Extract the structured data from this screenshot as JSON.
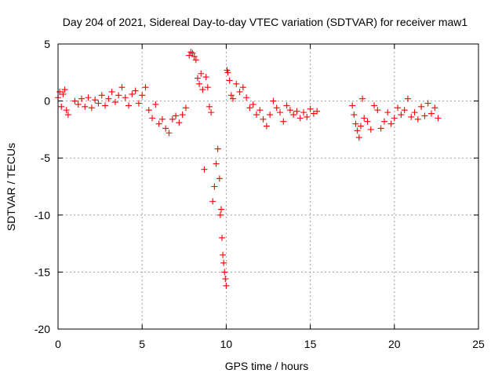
{
  "chart_data": {
    "type": "scatter",
    "title": "Day 204 of 2021, Sidereal Day-to-day VTEC variation (SDTVAR) for receiver maw1",
    "xlabel": "GPS time / hours",
    "ylabel": "SDTVAR / TECUs",
    "xlim": [
      0,
      25
    ],
    "ylim": [
      -20,
      5
    ],
    "xticks": [
      0,
      5,
      10,
      15,
      20,
      25
    ],
    "yticks": [
      5,
      0,
      -5,
      -10,
      -15,
      -20
    ],
    "xtick_labels": [
      "0",
      "5",
      "10",
      "15",
      "20",
      "25"
    ],
    "ytick_labels": [
      "5",
      "0",
      "-5",
      "-10",
      "-15",
      "-20"
    ],
    "grid": true,
    "legend": "none",
    "marker": "+",
    "color": "#ff0000",
    "series": [
      {
        "name": "maw1",
        "x": [
          0.0,
          0.1,
          0.2,
          0.3,
          0.4,
          0.5,
          0.6,
          1.0,
          1.2,
          1.4,
          1.6,
          1.8,
          2.0,
          2.2,
          2.4,
          2.6,
          2.8,
          3.0,
          3.2,
          3.4,
          3.6,
          3.8,
          4.0,
          4.2,
          4.4,
          4.6,
          4.8,
          5.0,
          5.2,
          5.4,
          5.6,
          5.8,
          6.0,
          6.2,
          6.4,
          6.6,
          6.8,
          7.0,
          7.2,
          7.4,
          7.6,
          7.8,
          7.9,
          8.0,
          8.1,
          8.2,
          8.3,
          8.4,
          8.5,
          8.6,
          8.7,
          8.8,
          8.9,
          9.0,
          9.1,
          9.2,
          9.3,
          9.4,
          9.5,
          9.6,
          9.65,
          9.7,
          9.75,
          9.8,
          9.85,
          9.9,
          9.95,
          10.0,
          10.05,
          10.1,
          10.2,
          10.3,
          10.4,
          10.6,
          10.8,
          11.0,
          11.2,
          11.4,
          11.6,
          11.8,
          12.0,
          12.2,
          12.4,
          12.6,
          12.8,
          13.0,
          13.2,
          13.4,
          13.6,
          13.8,
          14.0,
          14.2,
          14.4,
          14.6,
          14.8,
          15.0,
          15.2,
          15.4,
          17.5,
          17.6,
          17.7,
          17.8,
          17.9,
          18.0,
          18.1,
          18.2,
          18.4,
          18.6,
          18.8,
          19.0,
          19.2,
          19.4,
          19.6,
          19.8,
          20.0,
          20.2,
          20.4,
          20.6,
          20.8,
          21.0,
          21.2,
          21.4,
          21.6,
          21.8,
          22.0,
          22.2,
          22.4,
          22.6
        ],
        "y": [
          0.3,
          0.8,
          -0.5,
          0.6,
          1.0,
          -0.8,
          -1.2,
          0.0,
          -0.3,
          0.2,
          -0.5,
          0.3,
          -0.6,
          0.1,
          -0.2,
          0.5,
          -0.4,
          0.2,
          0.8,
          -0.1,
          0.5,
          1.2,
          0.3,
          -0.4,
          0.6,
          0.9,
          -0.2,
          0.5,
          1.2,
          -0.8,
          -1.5,
          -0.3,
          -2.0,
          -1.6,
          -2.4,
          -2.8,
          -1.6,
          -1.3,
          -1.9,
          -1.2,
          -0.6,
          4.0,
          4.3,
          4.2,
          3.9,
          3.6,
          2.0,
          1.5,
          2.4,
          1.0,
          -6.0,
          2.1,
          1.2,
          -0.5,
          -1.0,
          -8.8,
          -7.5,
          -5.5,
          -4.2,
          -6.8,
          -10.0,
          -9.5,
          -12.0,
          -13.5,
          -14.2,
          -15.0,
          -15.6,
          -16.2,
          2.7,
          2.5,
          1.8,
          0.5,
          0.2,
          1.5,
          0.8,
          1.2,
          0.3,
          -0.6,
          -0.3,
          -1.2,
          -0.8,
          -1.6,
          -2.2,
          -1.2,
          0.0,
          -0.6,
          -1.0,
          -1.8,
          -0.4,
          -0.8,
          -1.2,
          -0.9,
          -1.5,
          -1.0,
          -1.4,
          -0.7,
          -1.1,
          -0.9,
          -0.4,
          -1.2,
          -2.0,
          -2.6,
          -3.2,
          -2.2,
          0.2,
          -1.5,
          -1.8,
          -2.5,
          -0.4,
          -0.8,
          -2.4,
          -1.8,
          -1.0,
          -2.0,
          -1.5,
          -0.6,
          -1.2,
          -0.8,
          0.2,
          -1.4,
          -1.0,
          -1.6,
          -0.5,
          -1.3,
          -0.2,
          -1.1,
          -0.6,
          -1.5
        ]
      }
    ]
  }
}
